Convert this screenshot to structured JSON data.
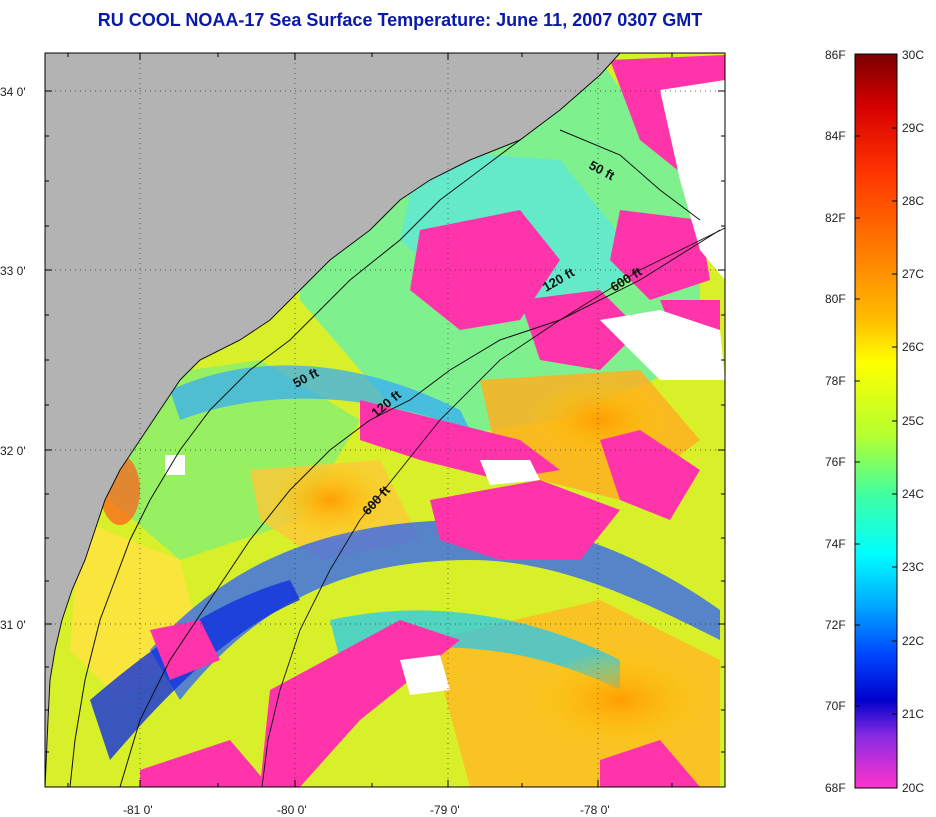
{
  "title": "RU COOL  NOAA-17  Sea Surface Temperature:  June 11, 2007 0307 GMT",
  "map": {
    "lat_ticks": [
      "34 0'",
      "33 0'",
      "32 0'",
      "31 0'"
    ],
    "lon_ticks": [
      "-81 0'",
      "-80 0'",
      "-79 0'",
      "-78 0'"
    ],
    "land_color": "#b3b3b3",
    "cloud_color": "#ff33aa",
    "isobath_labels": [
      {
        "text": "50 ft"
      },
      {
        "text": "120 ft"
      },
      {
        "text": "600 ft"
      },
      {
        "text": "50 ft"
      },
      {
        "text": "120 ft"
      },
      {
        "text": "600 ft"
      }
    ]
  },
  "colorbar": {
    "fahrenheit_labels": [
      "86F",
      "84F",
      "82F",
      "80F",
      "78F",
      "76F",
      "74F",
      "72F",
      "70F",
      "68F"
    ],
    "celsius_labels": [
      "30C",
      "29C",
      "28C",
      "27C",
      "26C",
      "25C",
      "24C",
      "23C",
      "22C",
      "21C",
      "20C"
    ],
    "color_stops": [
      "#7a0000",
      "#d40000",
      "#ff3300",
      "#ff7700",
      "#ffbb00",
      "#ffff00",
      "#b4ff30",
      "#40ffa0",
      "#00ffff",
      "#00aaff",
      "#0044ff",
      "#0000cc",
      "#8a2be2",
      "#ff33cc"
    ]
  }
}
